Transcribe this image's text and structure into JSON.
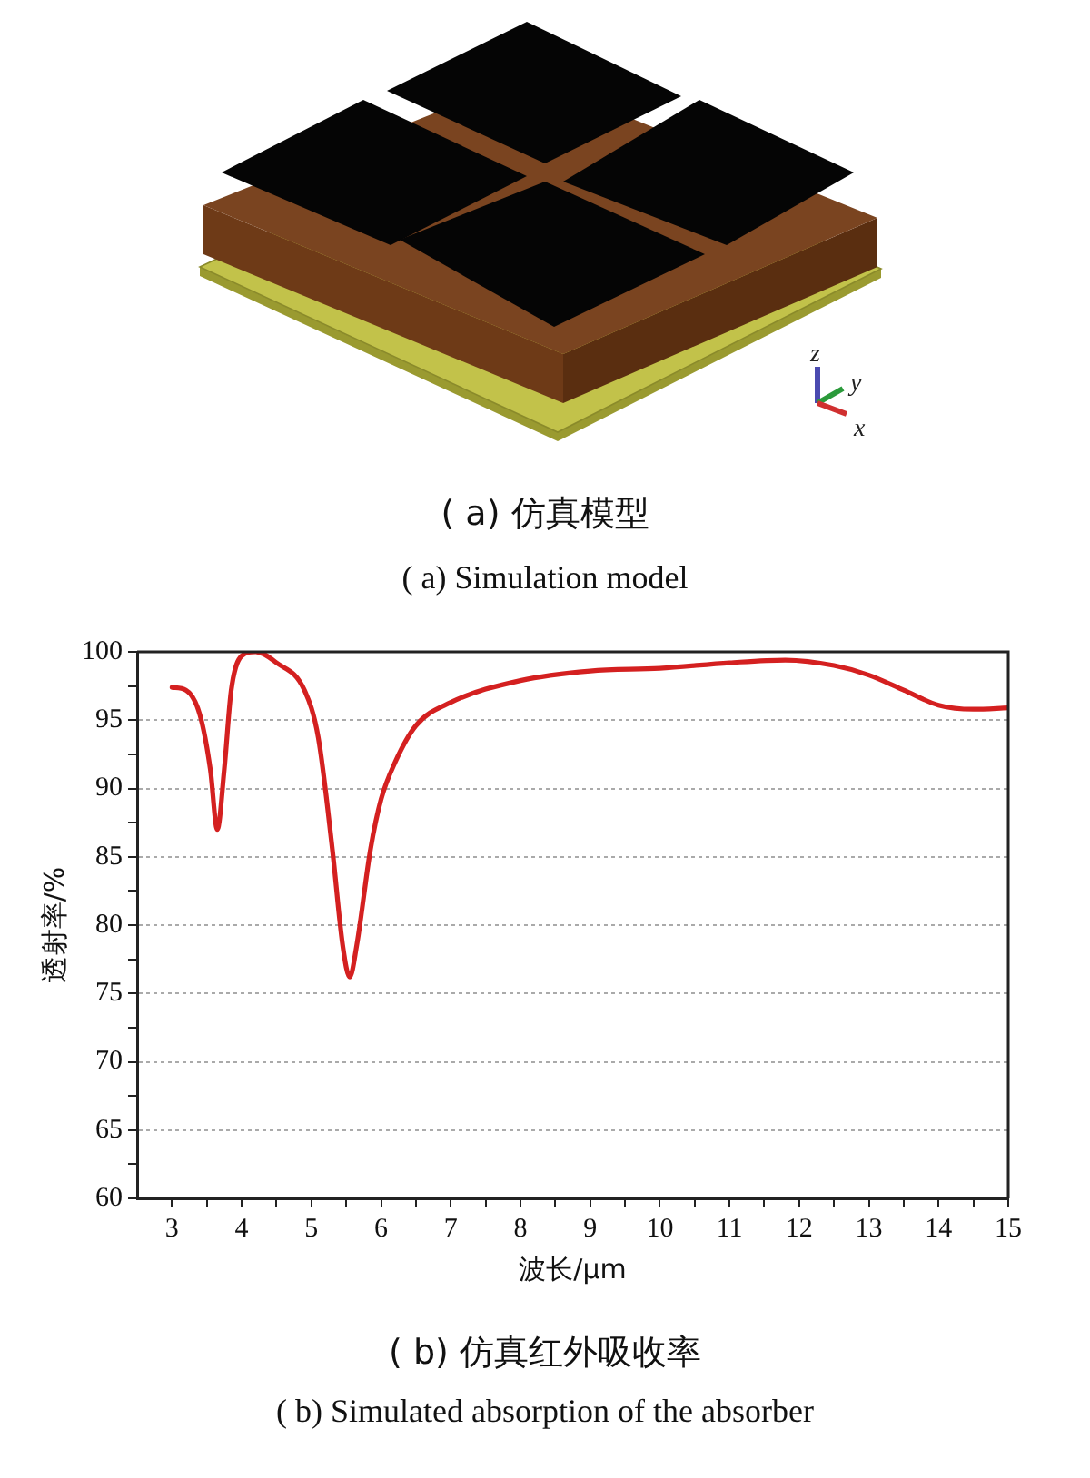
{
  "chart_data": {
    "type": "line",
    "xlabel": "波长/μm",
    "ylabel": "透射率/%",
    "x": [
      3,
      3.2,
      3.4,
      3.55,
      3.65,
      3.75,
      3.85,
      4.0,
      4.2,
      4.5,
      4.9,
      5.1,
      5.3,
      5.45,
      5.55,
      5.65,
      5.85,
      6.0,
      6.2,
      6.5,
      7.0,
      8,
      9,
      10,
      11,
      11.8,
      12.5,
      13,
      13.5,
      14,
      14.5,
      15
    ],
    "series": [
      {
        "color": "#d42020",
        "values": [
          97.4,
          97.2,
          95.4,
          91.4,
          87.0,
          91.4,
          97.2,
          99.7,
          100,
          99.2,
          97.2,
          93.7,
          85.6,
          78.5,
          76.2,
          78.5,
          85.6,
          89.2,
          91.9,
          94.6,
          96.3,
          97.9,
          98.6,
          98.8,
          99.2,
          99.4,
          99.0,
          98.3,
          97.2,
          96.1,
          95.8,
          95.9
        ]
      }
    ],
    "xlim": [
      2.5,
      15
    ],
    "xticks": [
      3,
      {
        "value": 3.5,
        "label": null
      },
      4,
      {
        "value": 4.5,
        "label": null
      },
      5,
      {
        "value": 5.5,
        "label": null
      },
      6,
      {
        "value": 6.5,
        "label": null
      },
      7,
      {
        "value": 7.5,
        "label": null
      },
      8,
      {
        "value": 8.5,
        "label": null
      },
      9,
      {
        "value": 9.5,
        "label": null
      },
      10,
      {
        "value": 10.5,
        "label": null
      },
      11,
      {
        "value": 11.5,
        "label": null
      },
      12,
      {
        "value": 12.5,
        "label": null
      },
      13,
      {
        "value": 13.5,
        "label": null
      },
      14,
      {
        "value": 14.5,
        "label": null
      },
      15
    ],
    "ylim": [
      60,
      100
    ],
    "yticks": [
      60,
      {
        "value": 62.5,
        "label": null
      },
      65,
      {
        "value": 67.5,
        "label": null
      },
      70,
      {
        "value": 72.5,
        "label": null
      },
      75,
      {
        "value": 77.5,
        "label": null
      },
      80,
      {
        "value": 82.5,
        "label": null
      },
      85,
      {
        "value": 87.5,
        "label": null
      },
      90,
      {
        "value": 92.5,
        "label": null
      },
      95,
      {
        "value": 97.5,
        "label": null
      },
      100
    ],
    "grid": "y",
    "annotations": [
      "z",
      "y",
      "x",
      "( a)  仿真模型",
      "( a)  Simulation model",
      "( b)  仿真红外吸收率",
      "( b)  Simulated absorption of the absorber"
    ]
  }
}
